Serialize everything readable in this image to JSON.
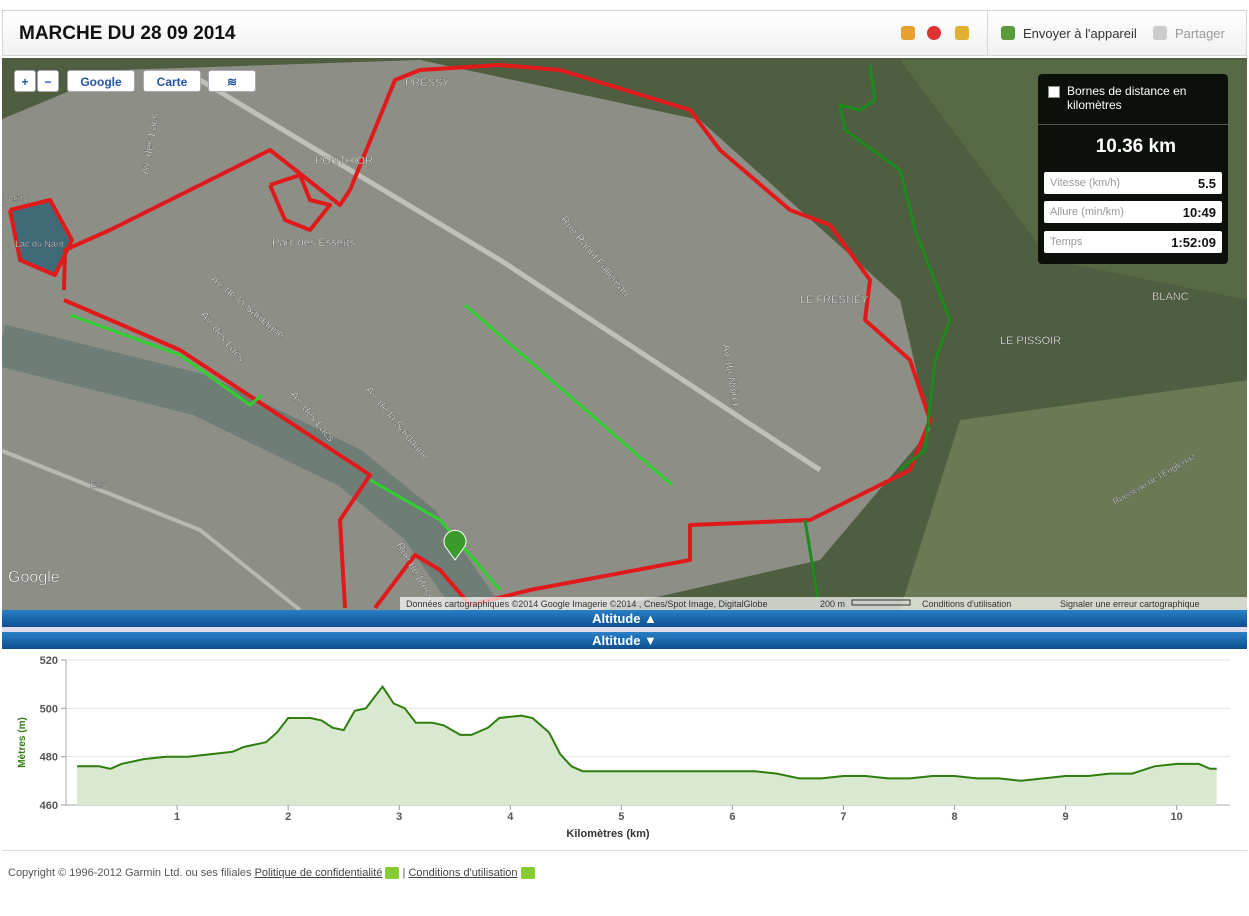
{
  "header": {
    "title": "MARCHE DU 28 09 2014",
    "actions": [
      "Envoyer à l'appareil",
      "Partager"
    ]
  },
  "map": {
    "controls": [
      "+",
      "−",
      "Google",
      "Carte"
    ],
    "labels": [
      "PRESSY",
      "PONTHIOR",
      "Parc des Esserts",
      "Lac du Nant",
      "Nanty",
      "Av. des Lacs",
      "Av. de la Sardagne",
      "Av. des Lacs",
      "Av. des Lacs",
      "Av. de la Sardagne",
      "Rue Raoul Follereau",
      "Av. du Noiret",
      "LE FRESNEY",
      "BLANC",
      "LE PISSOIR",
      "Ruisseau de l'Englenaz",
      "Rue de Messy",
      "E25"
    ],
    "logo": "Google",
    "attribution": "Données cartographiques ©2014 Google Imagerie ©2014 , Cnes/Spot Image, DigitalGlobe",
    "scale": "200 m",
    "terms": "Conditions d'utilisation",
    "report": "Signaler une erreur cartographique"
  },
  "stats": {
    "checkbox_label": "Bornes de distance en kilomètres",
    "distance": "10.36 km",
    "rows": [
      {
        "label": "Vitesse (km/h)",
        "value": "5.5"
      },
      {
        "label": "Allure (min/km)",
        "value": "10:49"
      },
      {
        "label": "Temps",
        "value": "1:52:09"
      }
    ]
  },
  "panel_bars": [
    "Altitude ▲",
    "Altitude ▼"
  ],
  "chart_data": {
    "type": "line",
    "x_label": "Kilomètres (km)",
    "y_label": "Mètres (m)",
    "color": "#2f7d0f",
    "fill": "#d8e9cf",
    "x": [
      0.1,
      0.3,
      0.4,
      0.5,
      0.7,
      0.9,
      1.1,
      1.3,
      1.5,
      1.6,
      1.8,
      1.9,
      2.0,
      2.2,
      2.3,
      2.4,
      2.5,
      2.6,
      2.7,
      2.85,
      2.95,
      3.05,
      3.15,
      3.3,
      3.4,
      3.55,
      3.65,
      3.8,
      3.9,
      4.1,
      4.2,
      4.35,
      4.45,
      4.55,
      4.65,
      5.0,
      5.5,
      6.0,
      6.2,
      6.4,
      6.6,
      6.8,
      7.0,
      7.2,
      7.4,
      7.6,
      7.8,
      8.0,
      8.2,
      8.4,
      8.6,
      8.8,
      9.0,
      9.2,
      9.4,
      9.6,
      9.8,
      10.0,
      10.2,
      10.3,
      10.36
    ],
    "values": [
      476,
      476,
      475,
      477,
      479,
      480,
      480,
      481,
      482,
      484,
      486,
      490,
      496,
      496,
      495,
      492,
      491,
      499,
      500,
      509,
      502,
      500,
      494,
      494,
      493,
      489,
      489,
      492,
      496,
      497,
      496,
      490,
      481,
      476,
      474,
      474,
      474,
      474,
      474,
      473,
      471,
      471,
      472,
      472,
      471,
      471,
      472,
      472,
      471,
      471,
      470,
      471,
      472,
      472,
      473,
      473,
      476,
      477,
      477,
      475,
      475
    ],
    "xlim": [
      0,
      10.48
    ],
    "ylim": [
      460,
      520
    ],
    "xticks": [
      1,
      2,
      3,
      4,
      5,
      6,
      7,
      8,
      9,
      10
    ],
    "yticks": [
      460,
      480,
      500,
      520
    ],
    "grid": true
  },
  "footer": {
    "copyright": "Copyright © 1996-2012 Garmin Ltd. ou ses filiales",
    "links": [
      "Politique de confidentialité",
      "Conditions d'utilisation"
    ],
    "separator": "|"
  }
}
